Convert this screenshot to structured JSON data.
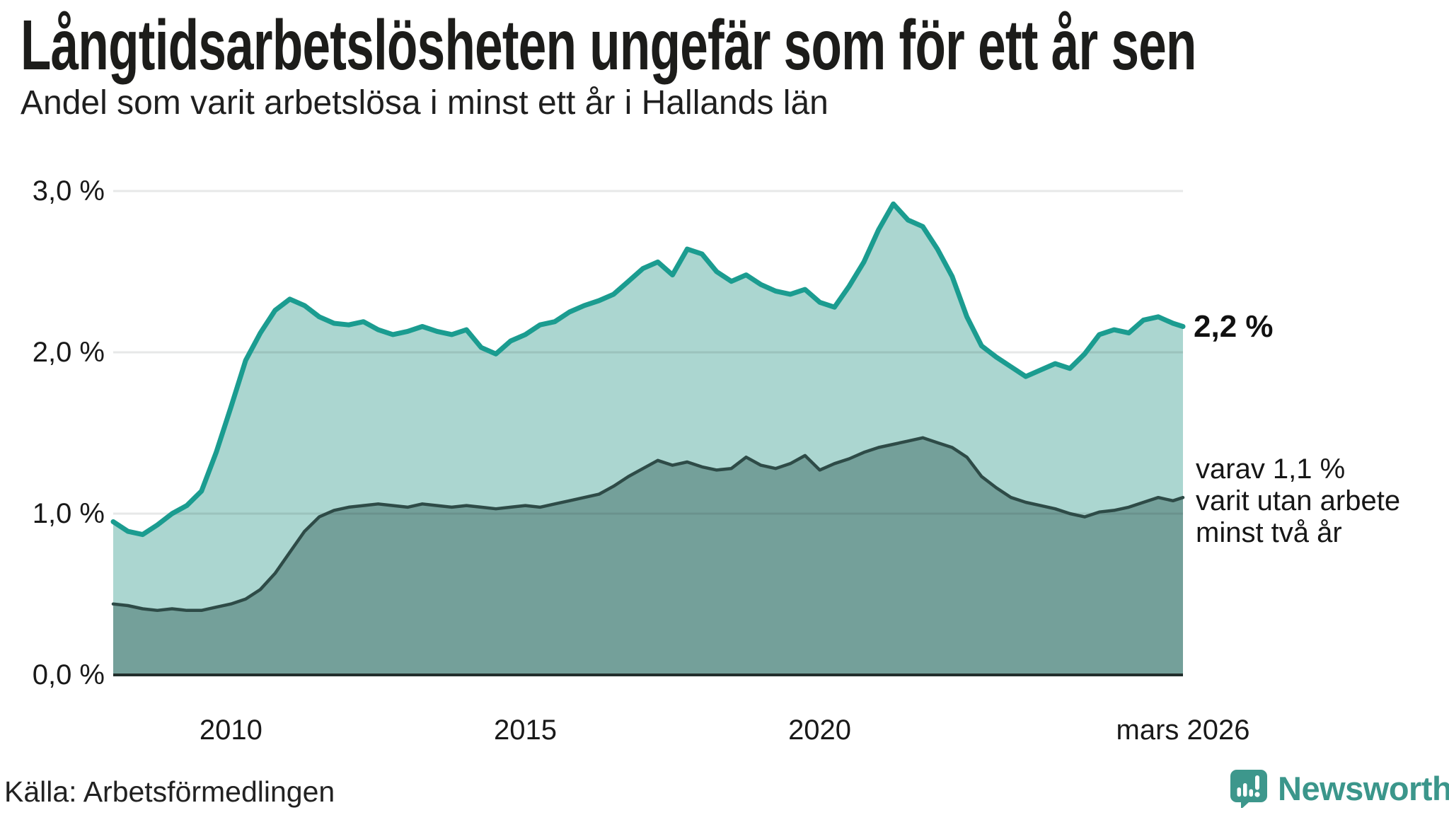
{
  "header": {
    "title": "Långtidsarbetslösheten ungefär som för ett år sen",
    "subtitle": "Andel som varit arbetslösa i minst ett år i Hallands län"
  },
  "chart_data": {
    "type": "area",
    "title": "Långtidsarbetslösheten ungefär som för ett år sen",
    "subtitle": "Andel som varit arbetslösa i minst ett år i Hallands län",
    "xlim": [
      2008.0,
      2026.17
    ],
    "ylim": [
      0.0,
      3.0
    ],
    "grid": "horizontal",
    "x": [
      2008.0,
      2008.25,
      2008.5,
      2008.75,
      2009.0,
      2009.25,
      2009.5,
      2009.75,
      2010.0,
      2010.25,
      2010.5,
      2010.75,
      2011.0,
      2011.25,
      2011.5,
      2011.75,
      2012.0,
      2012.25,
      2012.5,
      2012.75,
      2013.0,
      2013.25,
      2013.5,
      2013.75,
      2014.0,
      2014.25,
      2014.5,
      2014.75,
      2015.0,
      2015.25,
      2015.5,
      2015.75,
      2016.0,
      2016.25,
      2016.5,
      2016.75,
      2017.0,
      2017.25,
      2017.5,
      2017.75,
      2018.0,
      2018.25,
      2018.5,
      2018.75,
      2019.0,
      2019.25,
      2019.5,
      2019.75,
      2020.0,
      2020.25,
      2020.5,
      2020.75,
      2021.0,
      2021.25,
      2021.5,
      2021.75,
      2022.0,
      2022.25,
      2022.5,
      2022.75,
      2023.0,
      2023.25,
      2023.5,
      2023.75,
      2024.0,
      2024.25,
      2024.5,
      2024.75,
      2025.0,
      2025.25,
      2025.5,
      2025.75,
      2026.0,
      2026.17
    ],
    "series": [
      {
        "name": "Arbetslösa minst ett år (andel, %)",
        "line_color": "#1b9c90",
        "fill_color": "#abd6d0",
        "line_width": 7,
        "values": [
          0.95,
          0.89,
          0.87,
          0.93,
          1.0,
          1.05,
          1.14,
          1.38,
          1.66,
          1.95,
          2.12,
          2.26,
          2.33,
          2.29,
          2.22,
          2.18,
          2.17,
          2.19,
          2.14,
          2.11,
          2.13,
          2.16,
          2.13,
          2.11,
          2.14,
          2.03,
          1.99,
          2.07,
          2.11,
          2.17,
          2.19,
          2.25,
          2.29,
          2.32,
          2.36,
          2.44,
          2.52,
          2.56,
          2.48,
          2.64,
          2.61,
          2.5,
          2.44,
          2.48,
          2.42,
          2.38,
          2.36,
          2.39,
          2.31,
          2.28,
          2.41,
          2.56,
          2.76,
          2.92,
          2.82,
          2.78,
          2.64,
          2.47,
          2.22,
          2.04,
          1.97,
          1.91,
          1.85,
          1.89,
          1.93,
          1.9,
          1.99,
          2.11,
          2.14,
          2.12,
          2.2,
          2.22,
          2.18,
          2.16
        ]
      },
      {
        "name": "varav utan arbete minst två år (andel, %)",
        "line_color": "#2e4b47",
        "fill_color": "#74a09a",
        "line_width": 4.5,
        "values": [
          0.44,
          0.43,
          0.41,
          0.4,
          0.41,
          0.4,
          0.4,
          0.42,
          0.44,
          0.47,
          0.53,
          0.63,
          0.76,
          0.89,
          0.98,
          1.02,
          1.04,
          1.05,
          1.06,
          1.05,
          1.04,
          1.06,
          1.05,
          1.04,
          1.05,
          1.04,
          1.03,
          1.04,
          1.05,
          1.04,
          1.06,
          1.08,
          1.1,
          1.12,
          1.17,
          1.23,
          1.28,
          1.33,
          1.3,
          1.32,
          1.29,
          1.27,
          1.28,
          1.35,
          1.3,
          1.28,
          1.31,
          1.36,
          1.27,
          1.31,
          1.34,
          1.38,
          1.41,
          1.43,
          1.45,
          1.47,
          1.44,
          1.41,
          1.35,
          1.23,
          1.16,
          1.1,
          1.07,
          1.05,
          1.03,
          1.0,
          0.98,
          1.01,
          1.02,
          1.04,
          1.07,
          1.1,
          1.08,
          1.1
        ]
      }
    ],
    "yticks": [
      {
        "value": 3.0,
        "label": "3,0 %"
      },
      {
        "value": 2.0,
        "label": "2,0 %"
      },
      {
        "value": 1.0,
        "label": "1,0 %"
      },
      {
        "value": 0.0,
        "label": "0,0 %"
      }
    ],
    "xticks": [
      {
        "value": 2010,
        "label": "2010"
      },
      {
        "value": 2015,
        "label": "2015"
      },
      {
        "value": 2020,
        "label": "2020"
      },
      {
        "value": 2026.17,
        "label": "mars 2026"
      }
    ],
    "annotations": {
      "total_end_label": "2,2 %",
      "breakdown": {
        "lines": [
          "varav 1,1 %",
          "varit utan arbete",
          "minst två år"
        ]
      }
    },
    "colors": {
      "gridline": "rgba(15,25,30,0.10)",
      "baseline": "#222e2c",
      "text": "#191919"
    }
  },
  "footer": {
    "source": "Källa: Arbetsförmedlingen",
    "brand": "Newsworthy",
    "brand_color": "#3b968b"
  }
}
